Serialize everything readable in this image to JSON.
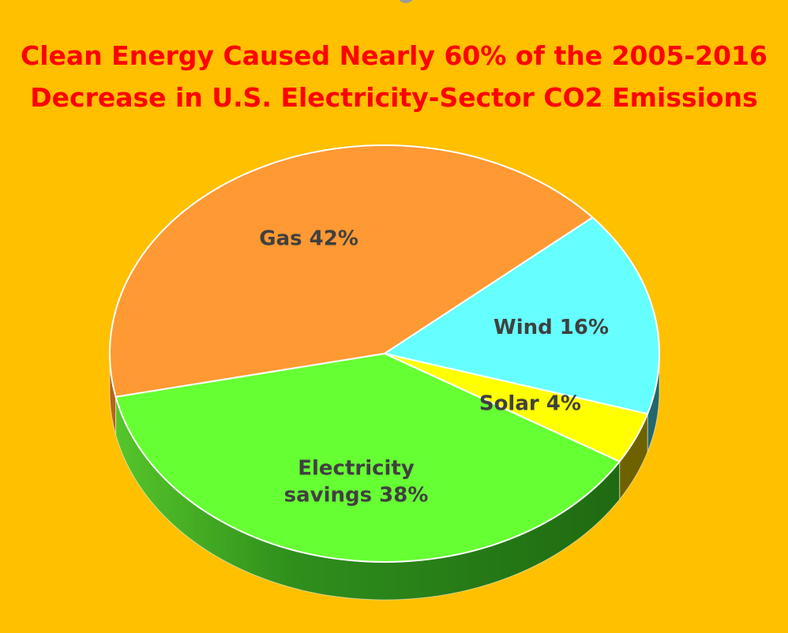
{
  "chart_data": {
    "type": "pie",
    "title_lines": [
      "Clean Energy Caused Nearly 60% of the 2005-2016",
      "Decrease in U.S. Electricity-Sector CO2 Emissions"
    ],
    "slices": [
      {
        "name": "Gas",
        "value": 42,
        "label_lines": [
          "Gas 42%"
        ],
        "color": "#FF9933",
        "side_color": "#B5631A"
      },
      {
        "name": "Wind",
        "value": 16,
        "label_lines": [
          "Wind 16%"
        ],
        "color": "#66FFFF",
        "side_color": "#23666B"
      },
      {
        "name": "Solar",
        "value": 4,
        "label_lines": [
          "Solar 4%"
        ],
        "color": "#FFFF00",
        "side_color": "#6E6200"
      },
      {
        "name": "Electricity savings",
        "value": 38,
        "label_lines": [
          "Electricity",
          "savings 38%"
        ],
        "color": "#66FF33",
        "side_color": "#2E8A1A"
      }
    ],
    "legend": "none",
    "style": "3d-pie"
  },
  "colors": {
    "background": "#FFC000",
    "title": "#FF0000",
    "label": "#404040"
  }
}
